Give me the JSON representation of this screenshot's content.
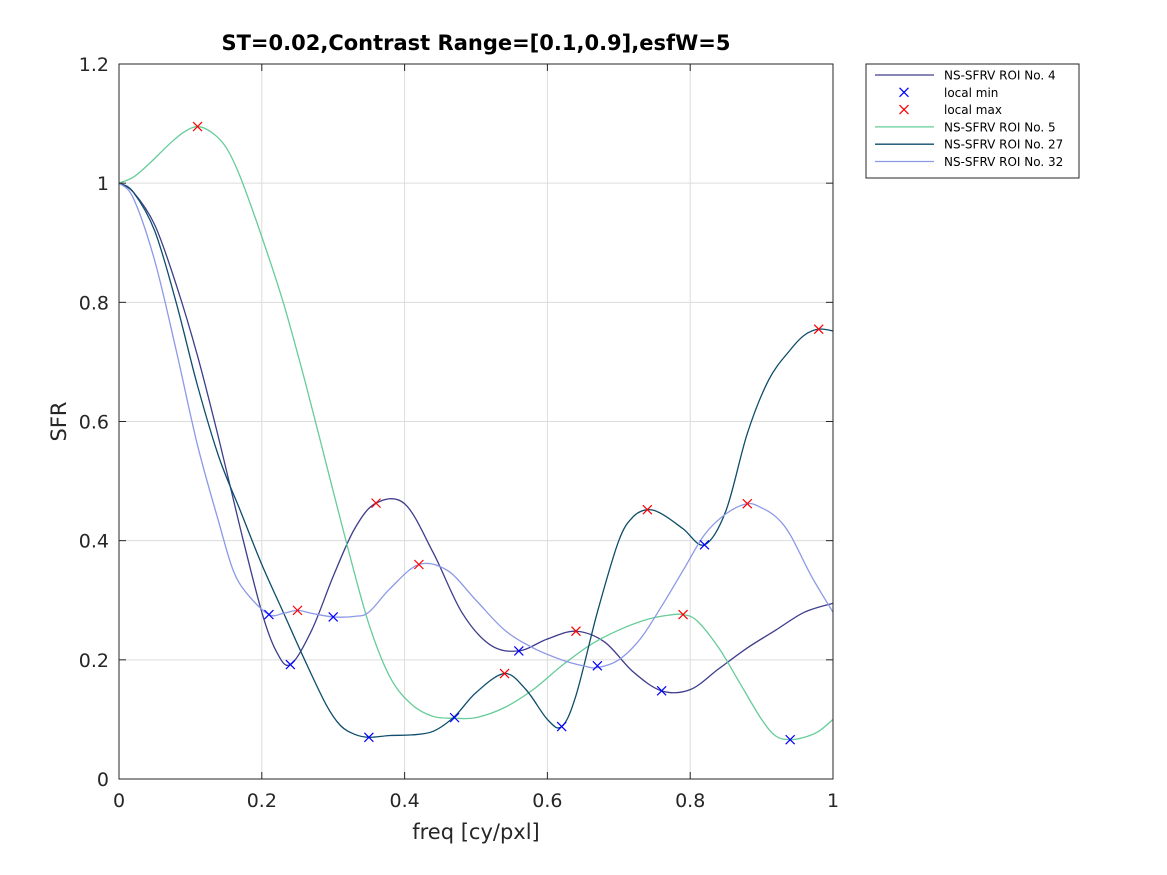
{
  "chart_data": {
    "type": "line",
    "title": "ST=0.02,Contrast Range=[0.1,0.9],esfW=5",
    "xlabel": "freq [cy/pxl]",
    "ylabel": "SFR",
    "xlim": [
      0,
      1
    ],
    "ylim": [
      0,
      1.2
    ],
    "xticks": [
      "0",
      "0.2",
      "0.4",
      "0.6",
      "0.8",
      "1"
    ],
    "yticks": [
      "0",
      "0.2",
      "0.4",
      "0.6",
      "0.8",
      "1",
      "1.2"
    ],
    "grid": true,
    "legend_position": "outside-top-right",
    "legend": [
      {
        "label": "NS-SFRV ROI No. 4",
        "kind": "line",
        "color": "#3d3d8c"
      },
      {
        "label": "local min",
        "kind": "marker-x",
        "color": "#0000ff"
      },
      {
        "label": "local max",
        "kind": "marker-x",
        "color": "#ff0000"
      },
      {
        "label": "NS-SFRV ROI No. 5",
        "kind": "line",
        "color": "#66cc99"
      },
      {
        "label": "NS-SFRV ROI No. 27",
        "kind": "line",
        "color": "#0d4d6b"
      },
      {
        "label": "NS-SFRV ROI No. 32",
        "kind": "line",
        "color": "#8c99e6"
      }
    ],
    "series": [
      {
        "name": "NS-SFRV ROI No. 4",
        "color": "#3d3d8c",
        "x": [
          0,
          0.02,
          0.05,
          0.08,
          0.11,
          0.14,
          0.17,
          0.2,
          0.22,
          0.24,
          0.27,
          0.3,
          0.33,
          0.36,
          0.4,
          0.44,
          0.48,
          0.52,
          0.56,
          0.6,
          0.64,
          0.68,
          0.72,
          0.76,
          0.8,
          0.84,
          0.88,
          0.92,
          0.96,
          1.0
        ],
        "y": [
          1.0,
          0.985,
          0.93,
          0.83,
          0.71,
          0.57,
          0.42,
          0.28,
          0.215,
          0.192,
          0.25,
          0.34,
          0.42,
          0.463,
          0.462,
          0.38,
          0.28,
          0.225,
          0.215,
          0.235,
          0.248,
          0.23,
          0.18,
          0.148,
          0.15,
          0.185,
          0.22,
          0.25,
          0.28,
          0.295
        ]
      },
      {
        "name": "NS-SFRV ROI No. 5",
        "color": "#66cc99",
        "x": [
          0,
          0.02,
          0.04,
          0.07,
          0.09,
          0.11,
          0.13,
          0.15,
          0.17,
          0.2,
          0.23,
          0.26,
          0.29,
          0.32,
          0.35,
          0.38,
          0.41,
          0.44,
          0.47,
          0.5,
          0.54,
          0.58,
          0.62,
          0.66,
          0.7,
          0.74,
          0.77,
          0.79,
          0.81,
          0.84,
          0.87,
          0.9,
          0.92,
          0.94,
          0.96,
          0.98,
          1.0
        ],
        "y": [
          1.0,
          1.01,
          1.03,
          1.065,
          1.085,
          1.095,
          1.085,
          1.06,
          1.01,
          0.91,
          0.8,
          0.67,
          0.53,
          0.39,
          0.26,
          0.17,
          0.125,
          0.105,
          0.102,
          0.103,
          0.12,
          0.15,
          0.19,
          0.225,
          0.25,
          0.268,
          0.275,
          0.276,
          0.265,
          0.22,
          0.16,
          0.1,
          0.072,
          0.066,
          0.07,
          0.08,
          0.1
        ]
      },
      {
        "name": "NS-SFRV ROI No. 27",
        "color": "#0d4d6b",
        "x": [
          0,
          0.02,
          0.05,
          0.08,
          0.11,
          0.14,
          0.17,
          0.2,
          0.23,
          0.26,
          0.29,
          0.31,
          0.33,
          0.35,
          0.38,
          0.41,
          0.44,
          0.47,
          0.5,
          0.54,
          0.57,
          0.6,
          0.62,
          0.64,
          0.67,
          0.7,
          0.72,
          0.74,
          0.76,
          0.79,
          0.82,
          0.85,
          0.88,
          0.91,
          0.94,
          0.96,
          0.98,
          1.0
        ],
        "y": [
          1.0,
          0.985,
          0.92,
          0.8,
          0.66,
          0.54,
          0.45,
          0.36,
          0.28,
          0.2,
          0.125,
          0.09,
          0.075,
          0.07,
          0.073,
          0.074,
          0.08,
          0.105,
          0.145,
          0.177,
          0.15,
          0.1,
          0.088,
          0.14,
          0.28,
          0.4,
          0.44,
          0.452,
          0.445,
          0.42,
          0.393,
          0.45,
          0.58,
          0.67,
          0.72,
          0.745,
          0.755,
          0.752
        ]
      },
      {
        "name": "NS-SFRV ROI No. 32",
        "color": "#8c99e6",
        "x": [
          0,
          0.02,
          0.05,
          0.08,
          0.11,
          0.14,
          0.16,
          0.18,
          0.21,
          0.23,
          0.25,
          0.27,
          0.3,
          0.33,
          0.35,
          0.38,
          0.42,
          0.46,
          0.5,
          0.54,
          0.58,
          0.62,
          0.65,
          0.67,
          0.7,
          0.73,
          0.76,
          0.79,
          0.82,
          0.85,
          0.88,
          0.9,
          0.92,
          0.94,
          0.97,
          1.0
        ],
        "y": [
          1.0,
          0.975,
          0.87,
          0.72,
          0.56,
          0.43,
          0.35,
          0.31,
          0.276,
          0.278,
          0.283,
          0.278,
          0.272,
          0.273,
          0.28,
          0.32,
          0.36,
          0.35,
          0.3,
          0.25,
          0.22,
          0.2,
          0.19,
          0.187,
          0.2,
          0.235,
          0.29,
          0.35,
          0.41,
          0.445,
          0.462,
          0.455,
          0.44,
          0.41,
          0.34,
          0.28
        ]
      }
    ],
    "local_min": {
      "color": "#0000ff",
      "x": [
        0.21,
        0.24,
        0.3,
        0.35,
        0.47,
        0.56,
        0.62,
        0.67,
        0.76,
        0.82,
        0.94
      ],
      "y": [
        0.276,
        0.192,
        0.272,
        0.07,
        0.103,
        0.215,
        0.088,
        0.19,
        0.148,
        0.393,
        0.066
      ]
    },
    "local_max": {
      "color": "#ff0000",
      "x": [
        0.11,
        0.25,
        0.36,
        0.42,
        0.54,
        0.64,
        0.74,
        0.79,
        0.88,
        0.98
      ],
      "y": [
        1.095,
        0.283,
        0.463,
        0.36,
        0.177,
        0.248,
        0.452,
        0.276,
        0.462,
        0.755
      ]
    }
  }
}
